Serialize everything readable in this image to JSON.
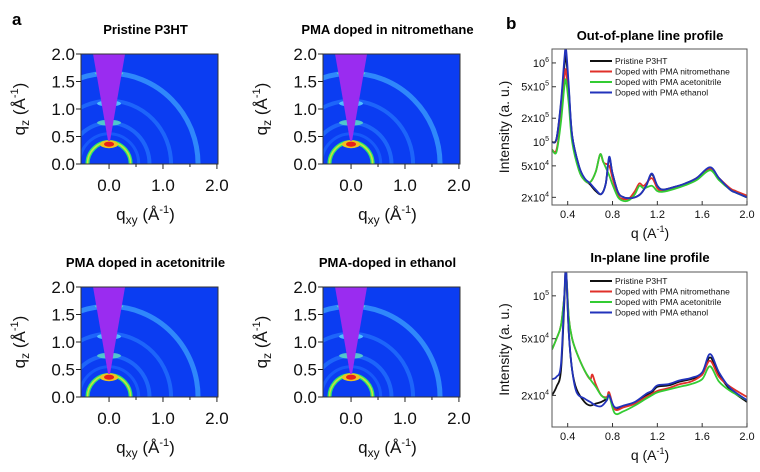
{
  "figure": {
    "panel_a_label": "a",
    "panel_b_label": "b"
  },
  "giwaxs": {
    "panels": [
      {
        "title": "Pristine P3HT"
      },
      {
        "title": "PMA doped in nitromethane"
      },
      {
        "title": "PMA doped in acetonitrile"
      },
      {
        "title": "PMA-doped in ethanol"
      }
    ],
    "x_ticks": [
      "0.0",
      "1.0",
      "2.0"
    ],
    "x_tick_values": [
      0,
      1,
      2
    ],
    "y_ticks": [
      "0.0",
      "0.5",
      "1.0",
      "1.5",
      "2.0"
    ],
    "y_tick_values": [
      0,
      0.5,
      1,
      1.5,
      2
    ],
    "xlim": [
      -0.52,
      2.02
    ],
    "ylim": [
      0,
      2.0
    ],
    "xlabel": {
      "base": "q",
      "sub": "xy",
      "unit": " (Å",
      "sup": "-1",
      "close": ")"
    },
    "ylabel": {
      "base": "q",
      "sub": "z",
      "unit": " (Å",
      "sup": "-1",
      "close": ")"
    },
    "colors": {
      "background": "#0b3df2",
      "beamstop": "#9a2cf0",
      "ring": "#2ee86a",
      "hot": "#e8201a"
    }
  },
  "chart_data": [
    {
      "type": "line",
      "title": "Out-of-plane line profile",
      "xlabel": {
        "base": "q (A",
        "sup": "-1",
        "close": ")"
      },
      "ylabel": "Intensity (a. u.)",
      "xlim": [
        0.26,
        2.0
      ],
      "ylim": [
        16000,
        1500000
      ],
      "yscale": "log",
      "x_ticks": [
        "0.4",
        "0.8",
        "1.2",
        "1.6",
        "2.0"
      ],
      "x_tick_values": [
        0.4,
        0.8,
        1.2,
        1.6,
        2.0
      ],
      "y_ticks": [
        {
          "value": 1000000,
          "mant": "10",
          "exp": "6"
        },
        {
          "value": 500000,
          "mant": "5x10",
          "exp": "5"
        },
        {
          "value": 200000,
          "mant": "2x10",
          "exp": "5"
        },
        {
          "value": 100000,
          "mant": "10",
          "exp": "5"
        },
        {
          "value": 50000,
          "mant": "5x10",
          "exp": "4"
        },
        {
          "value": 20000,
          "mant": "2x10",
          "exp": "4"
        }
      ],
      "legend": "top-right",
      "series": [
        {
          "name": "Pristine P3HT",
          "color": "#111111",
          "x": [
            0.26,
            0.3,
            0.34,
            0.37,
            0.385,
            0.41,
            0.44,
            0.5,
            0.55,
            0.6,
            0.65,
            0.7,
            0.74,
            0.77,
            0.8,
            0.85,
            0.9,
            0.95,
            1.0,
            1.05,
            1.1,
            1.15,
            1.2,
            1.25,
            1.35,
            1.45,
            1.55,
            1.67,
            1.75,
            1.85,
            1.9,
            2.0
          ],
          "y": [
            100000,
            110000,
            300000,
            900000,
            1200000,
            450000,
            120000,
            50000,
            34000,
            29000,
            24000,
            22000,
            30000,
            62000,
            40000,
            23000,
            20000,
            19500,
            20000,
            22000,
            28000,
            39000,
            28000,
            25000,
            27000,
            30000,
            35000,
            47000,
            35000,
            25000,
            23000,
            20000
          ]
        },
        {
          "name": "Doped with PMA nitromethane",
          "color": "#e0302a",
          "x": [
            0.26,
            0.3,
            0.34,
            0.37,
            0.385,
            0.41,
            0.44,
            0.5,
            0.55,
            0.6,
            0.65,
            0.69,
            0.72,
            0.77,
            0.8,
            0.85,
            0.9,
            0.95,
            1.0,
            1.04,
            1.08,
            1.15,
            1.2,
            1.25,
            1.35,
            1.45,
            1.55,
            1.67,
            1.75,
            1.85,
            1.9,
            2.0
          ],
          "y": [
            80000,
            80000,
            200000,
            650000,
            800000,
            350000,
            110000,
            45000,
            33000,
            31000,
            42000,
            70000,
            55000,
            50000,
            35000,
            21000,
            19000,
            19500,
            24000,
            30000,
            28000,
            35000,
            26000,
            24000,
            26500,
            29500,
            35000,
            46000,
            35000,
            26000,
            24000,
            21000
          ]
        },
        {
          "name": "Doped with PMA acetonitrile",
          "color": "#33cc33",
          "x": [
            0.26,
            0.3,
            0.34,
            0.37,
            0.385,
            0.41,
            0.44,
            0.5,
            0.55,
            0.6,
            0.65,
            0.69,
            0.72,
            0.77,
            0.8,
            0.85,
            0.9,
            0.95,
            1.0,
            1.04,
            1.08,
            1.15,
            1.2,
            1.25,
            1.35,
            1.45,
            1.55,
            1.67,
            1.75,
            1.85,
            1.9,
            2.0
          ],
          "y": [
            80000,
            75000,
            180000,
            500000,
            600000,
            300000,
            100000,
            44000,
            33000,
            31000,
            42000,
            70000,
            55000,
            38000,
            29000,
            20000,
            18000,
            18500,
            22000,
            28000,
            26000,
            28000,
            24000,
            23500,
            25500,
            28500,
            33000,
            44000,
            33000,
            25000,
            23000,
            20000
          ]
        },
        {
          "name": "Doped with PMA ethanol",
          "color": "#2233bb",
          "x": [
            0.26,
            0.3,
            0.34,
            0.37,
            0.385,
            0.41,
            0.44,
            0.5,
            0.55,
            0.6,
            0.65,
            0.7,
            0.74,
            0.77,
            0.8,
            0.85,
            0.9,
            0.95,
            1.0,
            1.05,
            1.1,
            1.15,
            1.2,
            1.25,
            1.35,
            1.45,
            1.55,
            1.67,
            1.75,
            1.85,
            1.9,
            2.0
          ],
          "y": [
            100000,
            110000,
            320000,
            1100000,
            1500000,
            500000,
            120000,
            50000,
            35000,
            30000,
            25000,
            22000,
            30000,
            65000,
            40000,
            23000,
            20000,
            19500,
            20000,
            22000,
            28000,
            40000,
            28000,
            25000,
            27000,
            30000,
            35000,
            48000,
            35000,
            25000,
            23000,
            20000
          ]
        }
      ]
    },
    {
      "type": "line",
      "title": "In-plane line profile",
      "xlabel": {
        "base": "q (A",
        "sup": "-1",
        "close": ")"
      },
      "ylabel": "Intensity (a. u.)",
      "xlim": [
        0.26,
        2.0
      ],
      "ylim": [
        12000,
        147000
      ],
      "yscale": "log",
      "x_ticks": [
        "0.4",
        "0.8",
        "1.2",
        "1.6",
        "2.0"
      ],
      "x_tick_values": [
        0.4,
        0.8,
        1.2,
        1.6,
        2.0
      ],
      "y_ticks": [
        {
          "value": 100000,
          "mant": "10",
          "exp": "5"
        },
        {
          "value": 50000,
          "mant": "5x10",
          "exp": "4"
        },
        {
          "value": 20000,
          "mant": "2x10",
          "exp": "4"
        }
      ],
      "legend": "top-right",
      "series": [
        {
          "name": "Pristine P3HT",
          "color": "#111111",
          "x": [
            0.26,
            0.3,
            0.34,
            0.37,
            0.385,
            0.41,
            0.44,
            0.48,
            0.55,
            0.6,
            0.65,
            0.7,
            0.75,
            0.77,
            0.82,
            0.9,
            1.0,
            1.1,
            1.15,
            1.2,
            1.3,
            1.4,
            1.5,
            1.6,
            1.67,
            1.75,
            1.85,
            2.0
          ],
          "y": [
            20000,
            23000,
            30000,
            90000,
            150000,
            55000,
            30000,
            22000,
            18000,
            17000,
            17500,
            18000,
            19000,
            20000,
            16000,
            16800,
            17800,
            20000,
            21000,
            23000,
            23500,
            25000,
            26000,
            28000,
            37000,
            28000,
            22000,
            18000
          ]
        },
        {
          "name": "Doped with PMA nitromethane",
          "color": "#e0302a",
          "x": [
            0.26,
            0.3,
            0.34,
            0.37,
            0.385,
            0.41,
            0.44,
            0.48,
            0.55,
            0.6,
            0.62,
            0.65,
            0.7,
            0.75,
            0.77,
            0.82,
            0.9,
            1.0,
            1.1,
            1.15,
            1.2,
            1.3,
            1.4,
            1.5,
            1.6,
            1.67,
            1.75,
            1.85,
            2.0
          ],
          "y": [
            42000,
            50000,
            62000,
            100000,
            150000,
            70000,
            50000,
            40000,
            30000,
            26000,
            28000,
            24000,
            20000,
            19500,
            21000,
            16000,
            16500,
            17500,
            19500,
            20500,
            21500,
            22500,
            24000,
            25000,
            28000,
            35000,
            27000,
            23000,
            19500
          ]
        },
        {
          "name": "Doped with PMA acetonitrile",
          "color": "#33cc33",
          "x": [
            0.26,
            0.3,
            0.34,
            0.37,
            0.385,
            0.41,
            0.44,
            0.48,
            0.55,
            0.6,
            0.65,
            0.7,
            0.75,
            0.77,
            0.82,
            0.9,
            1.0,
            1.1,
            1.15,
            1.2,
            1.3,
            1.4,
            1.5,
            1.6,
            1.67,
            1.75,
            1.85,
            2.0
          ],
          "y": [
            42000,
            50000,
            62000,
            100000,
            150000,
            70000,
            50000,
            40000,
            30000,
            26000,
            23000,
            20000,
            19000,
            20000,
            15000,
            15500,
            17000,
            19000,
            20000,
            21000,
            22000,
            23000,
            24000,
            26000,
            32000,
            25000,
            21500,
            18500
          ]
        },
        {
          "name": "Doped with PMA ethanol",
          "color": "#2233bb",
          "x": [
            0.26,
            0.3,
            0.34,
            0.37,
            0.385,
            0.41,
            0.44,
            0.48,
            0.55,
            0.6,
            0.65,
            0.7,
            0.75,
            0.77,
            0.82,
            0.9,
            1.0,
            1.1,
            1.15,
            1.2,
            1.3,
            1.4,
            1.5,
            1.6,
            1.67,
            1.75,
            1.85,
            2.0
          ],
          "y": [
            26000,
            27000,
            33000,
            100000,
            155000,
            55000,
            30000,
            21000,
            19000,
            18000,
            17000,
            16800,
            18500,
            20000,
            16500,
            17000,
            18000,
            20500,
            21500,
            23500,
            24000,
            25500,
            26500,
            29000,
            39000,
            29000,
            22500,
            18500
          ]
        }
      ]
    }
  ]
}
